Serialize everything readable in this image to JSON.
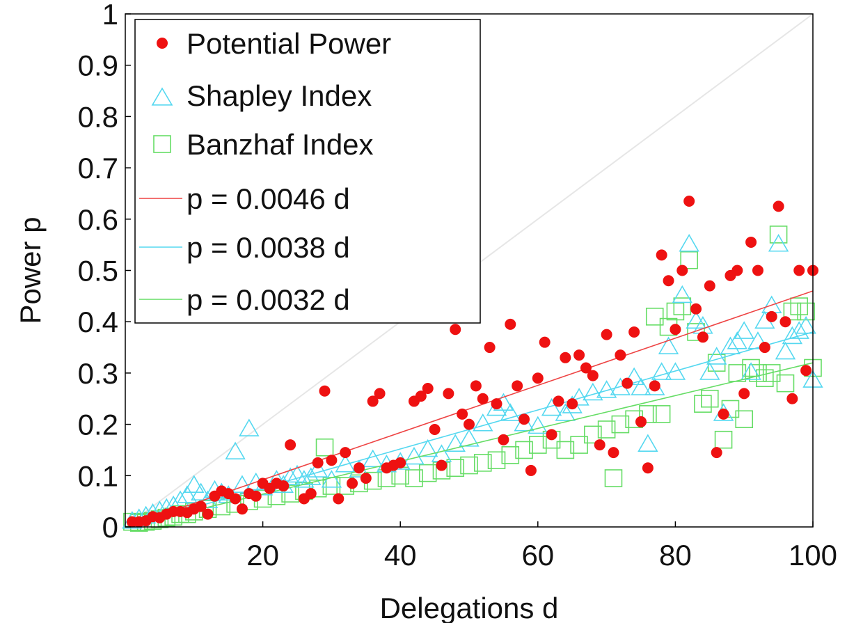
{
  "chart_data": {
    "type": "scatter",
    "title": "",
    "xlabel": "Delegations d",
    "ylabel": "Power p",
    "xlim": [
      0,
      100
    ],
    "ylim": [
      0,
      1
    ],
    "x_ticks": [
      20,
      40,
      60,
      80,
      100
    ],
    "y_ticks": [
      0,
      0.1,
      0.2,
      0.3,
      0.4,
      0.5,
      0.6,
      0.7,
      0.8,
      0.9,
      1
    ],
    "y_tick_labels": [
      "0",
      "0.1",
      "0.2",
      "0.3",
      "0.4",
      "0.5",
      "0.6",
      "0.7",
      "0.8",
      "0.9",
      "1"
    ],
    "grid": false,
    "legend_position": "top-left",
    "colors": {
      "potential": "#ee1111",
      "shapley": "#55d8f0",
      "banzhaf": "#66dd66",
      "reference": "#e6e6e6"
    },
    "reference_line": {
      "x": [
        0,
        100
      ],
      "y": [
        0,
        1
      ]
    },
    "series": [
      {
        "name": "Potential Power",
        "marker": "circle",
        "points": [
          [
            1,
            0.01
          ],
          [
            2,
            0.01
          ],
          [
            3,
            0.012
          ],
          [
            4,
            0.02
          ],
          [
            5,
            0.018
          ],
          [
            6,
            0.025
          ],
          [
            7,
            0.03
          ],
          [
            8,
            0.03
          ],
          [
            9,
            0.028
          ],
          [
            10,
            0.035
          ],
          [
            11,
            0.04
          ],
          [
            12,
            0.025
          ],
          [
            13,
            0.06
          ],
          [
            14,
            0.07
          ],
          [
            15,
            0.065
          ],
          [
            16,
            0.055
          ],
          [
            17,
            0.035
          ],
          [
            18,
            0.065
          ],
          [
            19,
            0.06
          ],
          [
            20,
            0.085
          ],
          [
            21,
            0.075
          ],
          [
            22,
            0.085
          ],
          [
            23,
            0.08
          ],
          [
            24,
            0.16
          ],
          [
            26,
            0.055
          ],
          [
            27,
            0.065
          ],
          [
            28,
            0.125
          ],
          [
            29,
            0.265
          ],
          [
            30,
            0.13
          ],
          [
            31,
            0.055
          ],
          [
            32,
            0.145
          ],
          [
            33,
            0.085
          ],
          [
            34,
            0.115
          ],
          [
            35,
            0.095
          ],
          [
            36,
            0.245
          ],
          [
            37,
            0.26
          ],
          [
            38,
            0.115
          ],
          [
            39,
            0.12
          ],
          [
            40,
            0.125
          ],
          [
            42,
            0.245
          ],
          [
            43,
            0.255
          ],
          [
            44,
            0.27
          ],
          [
            45,
            0.19
          ],
          [
            46,
            0.12
          ],
          [
            47,
            0.26
          ],
          [
            48,
            0.385
          ],
          [
            49,
            0.22
          ],
          [
            50,
            0.2
          ],
          [
            51,
            0.275
          ],
          [
            52,
            0.25
          ],
          [
            53,
            0.35
          ],
          [
            54,
            0.24
          ],
          [
            55,
            0.17
          ],
          [
            56,
            0.395
          ],
          [
            57,
            0.275
          ],
          [
            58,
            0.21
          ],
          [
            59,
            0.11
          ],
          [
            60,
            0.29
          ],
          [
            61,
            0.36
          ],
          [
            62,
            0.18
          ],
          [
            63,
            0.245
          ],
          [
            64,
            0.33
          ],
          [
            65,
            0.24
          ],
          [
            66,
            0.335
          ],
          [
            67,
            0.31
          ],
          [
            68,
            0.295
          ],
          [
            69,
            0.16
          ],
          [
            70,
            0.375
          ],
          [
            71,
            0.145
          ],
          [
            72,
            0.335
          ],
          [
            73,
            0.28
          ],
          [
            74,
            0.38
          ],
          [
            75,
            0.205
          ],
          [
            76,
            0.115
          ],
          [
            77,
            0.275
          ],
          [
            78,
            0.53
          ],
          [
            79,
            0.48
          ],
          [
            80,
            0.385
          ],
          [
            81,
            0.5
          ],
          [
            82,
            0.635
          ],
          [
            83,
            0.425
          ],
          [
            84,
            0.37
          ],
          [
            85,
            0.47
          ],
          [
            86,
            0.145
          ],
          [
            87,
            0.22
          ],
          [
            88,
            0.49
          ],
          [
            89,
            0.5
          ],
          [
            90,
            0.26
          ],
          [
            91,
            0.555
          ],
          [
            92,
            0.5
          ],
          [
            93,
            0.35
          ],
          [
            94,
            0.41
          ],
          [
            95,
            0.625
          ],
          [
            96,
            0.4
          ],
          [
            97,
            0.25
          ],
          [
            98,
            0.5
          ],
          [
            99,
            0.305
          ],
          [
            100,
            0.5
          ]
        ]
      },
      {
        "name": "Shapley Index",
        "marker": "triangle",
        "points": [
          [
            1,
            0.01
          ],
          [
            2,
            0.015
          ],
          [
            3,
            0.02
          ],
          [
            4,
            0.025
          ],
          [
            5,
            0.03
          ],
          [
            6,
            0.035
          ],
          [
            7,
            0.04
          ],
          [
            8,
            0.05
          ],
          [
            9,
            0.06
          ],
          [
            10,
            0.08
          ],
          [
            11,
            0.065
          ],
          [
            12,
            0.05
          ],
          [
            13,
            0.07
          ],
          [
            14,
            0.065
          ],
          [
            15,
            0.06
          ],
          [
            16,
            0.145
          ],
          [
            17,
            0.08
          ],
          [
            18,
            0.19
          ],
          [
            19,
            0.085
          ],
          [
            20,
            0.075
          ],
          [
            22,
            0.09
          ],
          [
            23,
            0.08
          ],
          [
            24,
            0.095
          ],
          [
            25,
            0.1
          ],
          [
            26,
            0.09
          ],
          [
            27,
            0.095
          ],
          [
            28,
            0.11
          ],
          [
            30,
            0.09
          ],
          [
            32,
            0.12
          ],
          [
            34,
            0.11
          ],
          [
            36,
            0.13
          ],
          [
            38,
            0.12
          ],
          [
            40,
            0.125
          ],
          [
            42,
            0.135
          ],
          [
            44,
            0.15
          ],
          [
            46,
            0.14
          ],
          [
            48,
            0.16
          ],
          [
            50,
            0.17
          ],
          [
            52,
            0.2
          ],
          [
            54,
            0.23
          ],
          [
            55,
            0.24
          ],
          [
            56,
            0.22
          ],
          [
            58,
            0.2
          ],
          [
            60,
            0.195
          ],
          [
            62,
            0.23
          ],
          [
            64,
            0.22
          ],
          [
            65,
            0.235
          ],
          [
            66,
            0.25
          ],
          [
            68,
            0.26
          ],
          [
            70,
            0.265
          ],
          [
            72,
            0.27
          ],
          [
            74,
            0.29
          ],
          [
            75,
            0.27
          ],
          [
            76,
            0.16
          ],
          [
            77,
            0.27
          ],
          [
            78,
            0.3
          ],
          [
            79,
            0.35
          ],
          [
            80,
            0.3
          ],
          [
            81,
            0.45
          ],
          [
            82,
            0.55
          ],
          [
            83,
            0.4
          ],
          [
            84,
            0.39
          ],
          [
            85,
            0.3
          ],
          [
            86,
            0.33
          ],
          [
            87,
            0.22
          ],
          [
            88,
            0.35
          ],
          [
            89,
            0.36
          ],
          [
            90,
            0.38
          ],
          [
            91,
            0.3
          ],
          [
            92,
            0.36
          ],
          [
            93,
            0.4
          ],
          [
            94,
            0.43
          ],
          [
            95,
            0.55
          ],
          [
            96,
            0.34
          ],
          [
            97,
            0.37
          ],
          [
            98,
            0.38
          ],
          [
            99,
            0.39
          ],
          [
            100,
            0.285
          ]
        ]
      },
      {
        "name": "Banzhaf Index",
        "marker": "square",
        "points": [
          [
            1,
            0.01
          ],
          [
            2,
            0.008
          ],
          [
            3,
            0.01
          ],
          [
            4,
            0.012
          ],
          [
            5,
            0.015
          ],
          [
            6,
            0.018
          ],
          [
            7,
            0.02
          ],
          [
            8,
            0.025
          ],
          [
            9,
            0.025
          ],
          [
            10,
            0.03
          ],
          [
            12,
            0.035
          ],
          [
            14,
            0.04
          ],
          [
            16,
            0.045
          ],
          [
            18,
            0.05
          ],
          [
            20,
            0.055
          ],
          [
            22,
            0.06
          ],
          [
            24,
            0.065
          ],
          [
            26,
            0.07
          ],
          [
            28,
            0.075
          ],
          [
            29,
            0.155
          ],
          [
            30,
            0.08
          ],
          [
            32,
            0.08
          ],
          [
            34,
            0.085
          ],
          [
            36,
            0.09
          ],
          [
            38,
            0.095
          ],
          [
            40,
            0.1
          ],
          [
            42,
            0.095
          ],
          [
            44,
            0.105
          ],
          [
            46,
            0.11
          ],
          [
            48,
            0.115
          ],
          [
            50,
            0.12
          ],
          [
            52,
            0.125
          ],
          [
            54,
            0.13
          ],
          [
            56,
            0.14
          ],
          [
            58,
            0.15
          ],
          [
            60,
            0.16
          ],
          [
            62,
            0.17
          ],
          [
            64,
            0.15
          ],
          [
            66,
            0.16
          ],
          [
            68,
            0.18
          ],
          [
            70,
            0.19
          ],
          [
            71,
            0.095
          ],
          [
            72,
            0.2
          ],
          [
            74,
            0.21
          ],
          [
            76,
            0.22
          ],
          [
            77,
            0.41
          ],
          [
            78,
            0.22
          ],
          [
            79,
            0.39
          ],
          [
            80,
            0.42
          ],
          [
            81,
            0.43
          ],
          [
            82,
            0.52
          ],
          [
            83,
            0.38
          ],
          [
            84,
            0.24
          ],
          [
            85,
            0.25
          ],
          [
            86,
            0.32
          ],
          [
            87,
            0.17
          ],
          [
            88,
            0.23
          ],
          [
            89,
            0.3
          ],
          [
            90,
            0.21
          ],
          [
            91,
            0.31
          ],
          [
            92,
            0.3
          ],
          [
            93,
            0.29
          ],
          [
            94,
            0.3
          ],
          [
            95,
            0.57
          ],
          [
            96,
            0.28
          ],
          [
            97,
            0.42
          ],
          [
            98,
            0.43
          ],
          [
            99,
            0.42
          ],
          [
            100,
            0.31
          ]
        ]
      }
    ],
    "fit_lines": [
      {
        "name": "p = 0.0046 d",
        "slope": 0.0046,
        "color": "#ee4444"
      },
      {
        "name": "p = 0.0038 d",
        "slope": 0.0038,
        "color": "#55d8f0"
      },
      {
        "name": "p = 0.0032 d",
        "slope": 0.0032,
        "color": "#66dd66"
      }
    ]
  }
}
